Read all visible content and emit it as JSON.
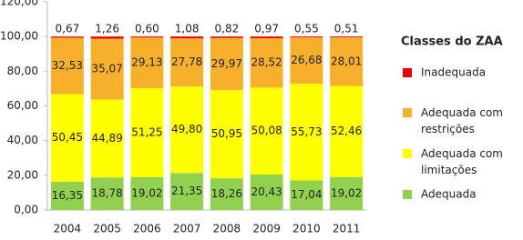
{
  "chart_data": {
    "type": "stacked_bar",
    "categories": [
      "2004",
      "2005",
      "2006",
      "2007",
      "2008",
      "2009",
      "2010",
      "2011"
    ],
    "series": [
      {
        "name": "Adequada",
        "color": "#92d050",
        "values": [
          16.35,
          18.78,
          19.02,
          21.35,
          18.26,
          20.43,
          17.04,
          19.02
        ],
        "value_labels": [
          "16,35",
          "18,78",
          "19,02",
          "21,35",
          "18,26",
          "20,43",
          "17,04",
          "19,02"
        ]
      },
      {
        "name": "Adequada com limitações",
        "color": "#ffff00",
        "values": [
          50.45,
          44.89,
          51.25,
          49.8,
          50.95,
          50.08,
          55.73,
          52.46
        ],
        "value_labels": [
          "50,45",
          "44,89",
          "51,25",
          "49,80",
          "50,95",
          "50,08",
          "55,73",
          "52,46"
        ]
      },
      {
        "name": "Adequada com restrições",
        "color": "#f7b02c",
        "values": [
          32.53,
          35.07,
          29.13,
          27.78,
          29.97,
          28.52,
          26.68,
          28.01
        ],
        "value_labels": [
          "32,53",
          "35,07",
          "29,13",
          "27,78",
          "29,97",
          "28,52",
          "26,68",
          "28,01"
        ]
      },
      {
        "name": "Inadequada",
        "color": "#e60000",
        "values": [
          0.67,
          1.26,
          0.6,
          1.08,
          0.82,
          0.97,
          0.55,
          0.51
        ],
        "value_labels": [
          "0,67",
          "1,26",
          "0,60",
          "1,08",
          "0,82",
          "0,97",
          "0,55",
          "0,51"
        ]
      }
    ],
    "ylim": [
      0,
      120
    ],
    "yticks": [
      {
        "value": 0,
        "label": "0,00"
      },
      {
        "value": 20,
        "label": "20,00"
      },
      {
        "value": 40,
        "label": "40,00"
      },
      {
        "value": 60,
        "label": "60,00"
      },
      {
        "value": 80,
        "label": "80,00"
      },
      {
        "value": 100,
        "label": "100,00"
      },
      {
        "value": 120,
        "label": "120,00"
      }
    ],
    "grid": false,
    "legend_title": "Classes do ZAA",
    "legend_position": "right"
  }
}
